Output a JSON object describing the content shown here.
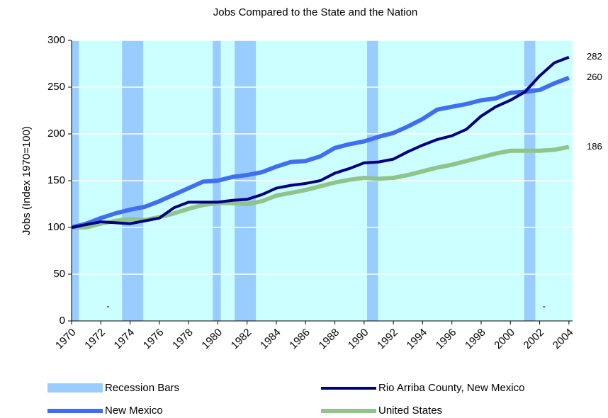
{
  "chart_data": {
    "type": "line",
    "title": "Jobs Compared to the State and the Nation",
    "y_label": "Jobs (Index 1970=100)",
    "x": [
      1970,
      1971,
      1972,
      1973,
      1974,
      1975,
      1976,
      1977,
      1978,
      1979,
      1980,
      1981,
      1982,
      1983,
      1984,
      1985,
      1986,
      1987,
      1988,
      1989,
      1990,
      1991,
      1992,
      1993,
      1994,
      1995,
      1996,
      1997,
      1998,
      1999,
      2000,
      2001,
      2002,
      2003,
      2004
    ],
    "xlim": [
      1970,
      2004.25
    ],
    "xticks": [
      1970,
      1972,
      1974,
      1976,
      1978,
      1980,
      1982,
      1984,
      1986,
      1988,
      1990,
      1992,
      1994,
      1996,
      1998,
      2000,
      2002,
      2004
    ],
    "ylim": [
      0,
      300
    ],
    "yticks": [
      0,
      50,
      100,
      150,
      200,
      250,
      300
    ],
    "grid": true,
    "recession_bars": {
      "name": "Recession Bars",
      "color": "#99ccff",
      "ranges": [
        [
          1970,
          1970.5
        ],
        [
          1973.45,
          1974.9
        ],
        [
          1979.65,
          1980.2
        ],
        [
          1981.15,
          1982.6
        ],
        [
          1990.2,
          1990.95
        ],
        [
          2000.95,
          2001.7
        ]
      ]
    },
    "series": [
      {
        "name": "Rio Arriba County, New Mexico",
        "color": "#000080",
        "width": 4,
        "values": [
          100,
          103,
          106,
          105,
          104,
          107,
          110,
          121,
          127,
          127,
          127,
          129,
          130,
          135,
          142,
          145,
          147,
          150,
          158,
          163,
          169,
          170,
          173,
          181,
          188,
          194,
          198,
          205,
          219,
          229,
          236,
          245,
          262,
          276,
          282
        ]
      },
      {
        "name": "New Mexico",
        "color": "#3f6ff0",
        "width": 6,
        "values": [
          100,
          104,
          110,
          115,
          119,
          122,
          128,
          135,
          142,
          149,
          150,
          154,
          156,
          159,
          165,
          170,
          171,
          176,
          185,
          189,
          192,
          197,
          201,
          208,
          216,
          226,
          229,
          232,
          236,
          238,
          244,
          245,
          247,
          254,
          260
        ]
      },
      {
        "name": "United States",
        "color": "#8fc48a",
        "width": 6,
        "values": [
          100,
          100,
          104,
          107,
          109,
          108,
          111,
          115,
          120,
          124,
          126,
          126,
          125,
          128,
          134,
          137,
          140,
          144,
          148,
          151,
          153,
          152,
          153,
          156,
          160,
          164,
          167,
          171,
          175,
          179,
          182,
          182,
          182,
          183,
          186
        ]
      }
    ],
    "annotations": [
      {
        "text": "-",
        "x": 1972.5,
        "y": 15
      },
      {
        "text": "-",
        "x": 2002.3,
        "y": 15
      }
    ]
  }
}
